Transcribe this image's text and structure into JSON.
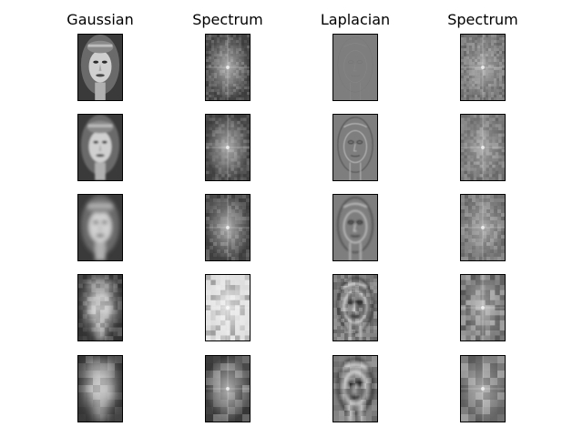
{
  "figure": {
    "columns": [
      {
        "title": "Gaussian",
        "kind": "face"
      },
      {
        "title": "Spectrum",
        "kind": "spectrum"
      },
      {
        "title": "Laplacian",
        "kind": "laplacian"
      },
      {
        "title": "Spectrum",
        "kind": "spectrum"
      }
    ],
    "levels": 5,
    "colors": {
      "background": "#ffffff",
      "title_text": "#000000"
    }
  }
}
